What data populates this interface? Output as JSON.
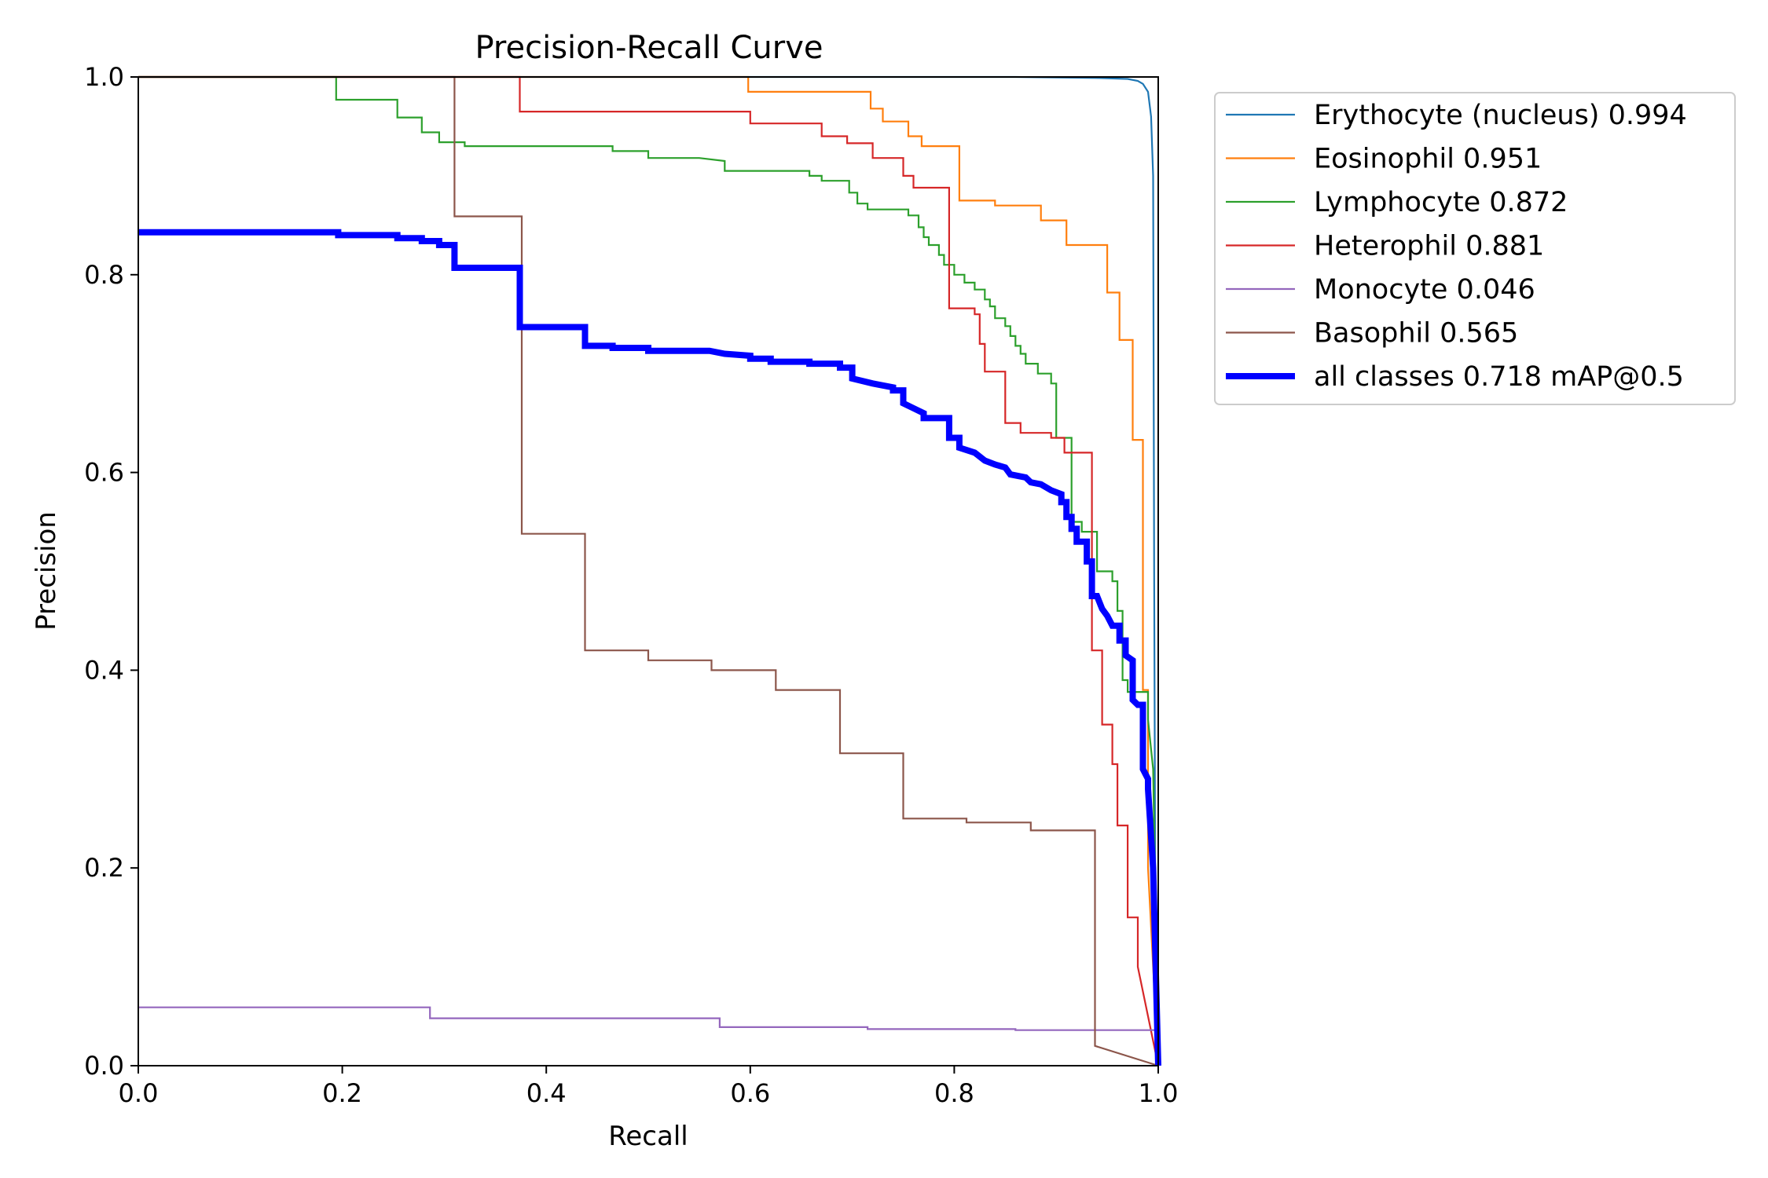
{
  "chart_data": {
    "type": "line",
    "title": "Precision-Recall Curve",
    "xlabel": "Recall",
    "ylabel": "Precision",
    "xlim": [
      0,
      1
    ],
    "ylim": [
      0,
      1
    ],
    "xticks": [
      "0.0",
      "0.2",
      "0.4",
      "0.6",
      "0.8",
      "1.0"
    ],
    "yticks": [
      "0.0",
      "0.2",
      "0.4",
      "0.6",
      "0.8",
      "1.0"
    ],
    "grid": false,
    "legend_position": "outside-top-right",
    "series": [
      {
        "name": "Erythocyte (nucleus) 0.994",
        "color": "#1f77b4",
        "width": "thin",
        "points": [
          [
            0.0,
            1.0
          ],
          [
            0.86,
            1.0
          ],
          [
            0.94,
            0.999
          ],
          [
            0.97,
            0.998
          ],
          [
            0.98,
            0.996
          ],
          [
            0.985,
            0.993
          ],
          [
            0.99,
            0.985
          ],
          [
            0.993,
            0.96
          ],
          [
            0.995,
            0.9
          ],
          [
            0.996,
            0.5
          ],
          [
            0.997,
            0.2
          ],
          [
            1.0,
            0.0
          ]
        ]
      },
      {
        "name": "Eosinophil 0.951",
        "color": "#ff7f0e",
        "width": "thin",
        "points": [
          [
            0.0,
            1.0
          ],
          [
            0.598,
            1.0
          ],
          [
            0.598,
            0.985
          ],
          [
            0.718,
            0.985
          ],
          [
            0.718,
            0.968
          ],
          [
            0.73,
            0.968
          ],
          [
            0.73,
            0.955
          ],
          [
            0.755,
            0.955
          ],
          [
            0.755,
            0.94
          ],
          [
            0.768,
            0.94
          ],
          [
            0.768,
            0.93
          ],
          [
            0.805,
            0.93
          ],
          [
            0.805,
            0.875
          ],
          [
            0.84,
            0.875
          ],
          [
            0.84,
            0.87
          ],
          [
            0.885,
            0.87
          ],
          [
            0.885,
            0.855
          ],
          [
            0.91,
            0.855
          ],
          [
            0.91,
            0.83
          ],
          [
            0.95,
            0.83
          ],
          [
            0.95,
            0.782
          ],
          [
            0.962,
            0.782
          ],
          [
            0.962,
            0.734
          ],
          [
            0.975,
            0.734
          ],
          [
            0.975,
            0.633
          ],
          [
            0.985,
            0.633
          ],
          [
            0.985,
            0.38
          ],
          [
            0.99,
            0.38
          ],
          [
            0.99,
            0.2
          ],
          [
            0.995,
            0.1
          ],
          [
            1.0,
            0.0
          ]
        ]
      },
      {
        "name": "Lymphocyte 0.872",
        "color": "#2ca02c",
        "width": "thin",
        "points": [
          [
            0.0,
            1.0
          ],
          [
            0.194,
            1.0
          ],
          [
            0.194,
            0.977
          ],
          [
            0.254,
            0.977
          ],
          [
            0.254,
            0.959
          ],
          [
            0.278,
            0.959
          ],
          [
            0.278,
            0.944
          ],
          [
            0.295,
            0.944
          ],
          [
            0.295,
            0.934
          ],
          [
            0.32,
            0.934
          ],
          [
            0.32,
            0.93
          ],
          [
            0.465,
            0.93
          ],
          [
            0.465,
            0.925
          ],
          [
            0.5,
            0.925
          ],
          [
            0.5,
            0.918
          ],
          [
            0.55,
            0.918
          ],
          [
            0.575,
            0.915
          ],
          [
            0.575,
            0.905
          ],
          [
            0.658,
            0.905
          ],
          [
            0.658,
            0.9
          ],
          [
            0.67,
            0.9
          ],
          [
            0.67,
            0.895
          ],
          [
            0.697,
            0.895
          ],
          [
            0.697,
            0.883
          ],
          [
            0.705,
            0.883
          ],
          [
            0.705,
            0.872
          ],
          [
            0.715,
            0.872
          ],
          [
            0.715,
            0.866
          ],
          [
            0.755,
            0.866
          ],
          [
            0.755,
            0.86
          ],
          [
            0.765,
            0.86
          ],
          [
            0.765,
            0.848
          ],
          [
            0.77,
            0.848
          ],
          [
            0.77,
            0.838
          ],
          [
            0.775,
            0.838
          ],
          [
            0.775,
            0.83
          ],
          [
            0.785,
            0.83
          ],
          [
            0.785,
            0.82
          ],
          [
            0.79,
            0.82
          ],
          [
            0.79,
            0.81
          ],
          [
            0.8,
            0.81
          ],
          [
            0.8,
            0.8
          ],
          [
            0.81,
            0.8
          ],
          [
            0.81,
            0.792
          ],
          [
            0.82,
            0.792
          ],
          [
            0.82,
            0.785
          ],
          [
            0.83,
            0.785
          ],
          [
            0.83,
            0.775
          ],
          [
            0.835,
            0.775
          ],
          [
            0.835,
            0.768
          ],
          [
            0.84,
            0.768
          ],
          [
            0.84,
            0.756
          ],
          [
            0.85,
            0.756
          ],
          [
            0.85,
            0.748
          ],
          [
            0.855,
            0.748
          ],
          [
            0.855,
            0.738
          ],
          [
            0.86,
            0.738
          ],
          [
            0.86,
            0.728
          ],
          [
            0.865,
            0.728
          ],
          [
            0.865,
            0.72
          ],
          [
            0.87,
            0.72
          ],
          [
            0.87,
            0.71
          ],
          [
            0.882,
            0.71
          ],
          [
            0.882,
            0.7
          ],
          [
            0.895,
            0.7
          ],
          [
            0.895,
            0.69
          ],
          [
            0.9,
            0.69
          ],
          [
            0.9,
            0.635
          ],
          [
            0.915,
            0.635
          ],
          [
            0.915,
            0.55
          ],
          [
            0.925,
            0.55
          ],
          [
            0.925,
            0.54
          ],
          [
            0.94,
            0.54
          ],
          [
            0.94,
            0.5
          ],
          [
            0.955,
            0.5
          ],
          [
            0.955,
            0.49
          ],
          [
            0.96,
            0.49
          ],
          [
            0.96,
            0.46
          ],
          [
            0.965,
            0.46
          ],
          [
            0.965,
            0.39
          ],
          [
            0.97,
            0.39
          ],
          [
            0.97,
            0.378
          ],
          [
            0.99,
            0.378
          ],
          [
            0.99,
            0.35
          ],
          [
            0.995,
            0.3
          ],
          [
            1.0,
            0.0
          ]
        ]
      },
      {
        "name": "Heterophil 0.881",
        "color": "#d62728",
        "width": "thin",
        "points": [
          [
            0.0,
            1.0
          ],
          [
            0.374,
            1.0
          ],
          [
            0.374,
            0.965
          ],
          [
            0.6,
            0.965
          ],
          [
            0.6,
            0.953
          ],
          [
            0.67,
            0.953
          ],
          [
            0.67,
            0.94
          ],
          [
            0.695,
            0.94
          ],
          [
            0.695,
            0.933
          ],
          [
            0.72,
            0.933
          ],
          [
            0.72,
            0.918
          ],
          [
            0.75,
            0.918
          ],
          [
            0.75,
            0.9
          ],
          [
            0.76,
            0.9
          ],
          [
            0.76,
            0.888
          ],
          [
            0.795,
            0.888
          ],
          [
            0.795,
            0.766
          ],
          [
            0.82,
            0.766
          ],
          [
            0.82,
            0.76
          ],
          [
            0.825,
            0.76
          ],
          [
            0.825,
            0.73
          ],
          [
            0.83,
            0.73
          ],
          [
            0.83,
            0.702
          ],
          [
            0.85,
            0.702
          ],
          [
            0.85,
            0.65
          ],
          [
            0.865,
            0.65
          ],
          [
            0.865,
            0.64
          ],
          [
            0.895,
            0.64
          ],
          [
            0.895,
            0.635
          ],
          [
            0.908,
            0.635
          ],
          [
            0.908,
            0.62
          ],
          [
            0.935,
            0.62
          ],
          [
            0.935,
            0.42
          ],
          [
            0.945,
            0.42
          ],
          [
            0.945,
            0.345
          ],
          [
            0.955,
            0.345
          ],
          [
            0.955,
            0.305
          ],
          [
            0.96,
            0.305
          ],
          [
            0.96,
            0.243
          ],
          [
            0.97,
            0.243
          ],
          [
            0.97,
            0.15
          ],
          [
            0.98,
            0.15
          ],
          [
            0.98,
            0.1
          ],
          [
            0.99,
            0.05
          ],
          [
            1.0,
            0.0
          ]
        ]
      },
      {
        "name": "Monocyte 0.046",
        "color": "#9467bd",
        "width": "thin",
        "points": [
          [
            0.0,
            0.059
          ],
          [
            0.286,
            0.059
          ],
          [
            0.286,
            0.048
          ],
          [
            0.57,
            0.048
          ],
          [
            0.57,
            0.039
          ],
          [
            0.715,
            0.039
          ],
          [
            0.715,
            0.037
          ],
          [
            0.86,
            0.037
          ],
          [
            0.86,
            0.036
          ],
          [
            1.0,
            0.036
          ]
        ]
      },
      {
        "name": "Basophil 0.565",
        "color": "#8c564b",
        "width": "thin",
        "points": [
          [
            0.0,
            1.0
          ],
          [
            0.31,
            1.0
          ],
          [
            0.31,
            0.859
          ],
          [
            0.376,
            0.859
          ],
          [
            0.376,
            0.538
          ],
          [
            0.438,
            0.538
          ],
          [
            0.438,
            0.42
          ],
          [
            0.5,
            0.42
          ],
          [
            0.5,
            0.41
          ],
          [
            0.562,
            0.41
          ],
          [
            0.562,
            0.4
          ],
          [
            0.625,
            0.4
          ],
          [
            0.625,
            0.38
          ],
          [
            0.688,
            0.38
          ],
          [
            0.688,
            0.316
          ],
          [
            0.75,
            0.316
          ],
          [
            0.75,
            0.25
          ],
          [
            0.812,
            0.25
          ],
          [
            0.812,
            0.246
          ],
          [
            0.875,
            0.246
          ],
          [
            0.875,
            0.238
          ],
          [
            0.938,
            0.238
          ],
          [
            0.938,
            0.02
          ],
          [
            1.0,
            0.0
          ]
        ]
      },
      {
        "name": "all classes 0.718 mAP@0.5",
        "color": "#0000ff",
        "width": "thick",
        "points": [
          [
            0.0,
            0.843
          ],
          [
            0.196,
            0.843
          ],
          [
            0.196,
            0.84
          ],
          [
            0.254,
            0.84
          ],
          [
            0.254,
            0.837
          ],
          [
            0.278,
            0.837
          ],
          [
            0.278,
            0.834
          ],
          [
            0.295,
            0.834
          ],
          [
            0.295,
            0.83
          ],
          [
            0.31,
            0.83
          ],
          [
            0.31,
            0.807
          ],
          [
            0.374,
            0.807
          ],
          [
            0.374,
            0.747
          ],
          [
            0.438,
            0.747
          ],
          [
            0.438,
            0.728
          ],
          [
            0.465,
            0.728
          ],
          [
            0.465,
            0.726
          ],
          [
            0.5,
            0.726
          ],
          [
            0.5,
            0.723
          ],
          [
            0.56,
            0.723
          ],
          [
            0.575,
            0.72
          ],
          [
            0.6,
            0.718
          ],
          [
            0.6,
            0.715
          ],
          [
            0.62,
            0.715
          ],
          [
            0.62,
            0.712
          ],
          [
            0.658,
            0.712
          ],
          [
            0.658,
            0.71
          ],
          [
            0.688,
            0.71
          ],
          [
            0.688,
            0.706
          ],
          [
            0.7,
            0.706
          ],
          [
            0.7,
            0.695
          ],
          [
            0.72,
            0.69
          ],
          [
            0.74,
            0.686
          ],
          [
            0.74,
            0.683
          ],
          [
            0.75,
            0.683
          ],
          [
            0.75,
            0.67
          ],
          [
            0.76,
            0.665
          ],
          [
            0.77,
            0.66
          ],
          [
            0.77,
            0.655
          ],
          [
            0.795,
            0.655
          ],
          [
            0.795,
            0.635
          ],
          [
            0.805,
            0.635
          ],
          [
            0.805,
            0.625
          ],
          [
            0.82,
            0.62
          ],
          [
            0.83,
            0.612
          ],
          [
            0.84,
            0.608
          ],
          [
            0.85,
            0.605
          ],
          [
            0.855,
            0.598
          ],
          [
            0.87,
            0.595
          ],
          [
            0.875,
            0.59
          ],
          [
            0.885,
            0.588
          ],
          [
            0.895,
            0.582
          ],
          [
            0.905,
            0.578
          ],
          [
            0.905,
            0.57
          ],
          [
            0.91,
            0.57
          ],
          [
            0.91,
            0.555
          ],
          [
            0.915,
            0.555
          ],
          [
            0.915,
            0.543
          ],
          [
            0.92,
            0.543
          ],
          [
            0.92,
            0.53
          ],
          [
            0.93,
            0.53
          ],
          [
            0.93,
            0.51
          ],
          [
            0.935,
            0.51
          ],
          [
            0.935,
            0.475
          ],
          [
            0.94,
            0.475
          ],
          [
            0.945,
            0.462
          ],
          [
            0.95,
            0.455
          ],
          [
            0.955,
            0.445
          ],
          [
            0.962,
            0.445
          ],
          [
            0.962,
            0.43
          ],
          [
            0.968,
            0.43
          ],
          [
            0.968,
            0.415
          ],
          [
            0.975,
            0.41
          ],
          [
            0.975,
            0.37
          ],
          [
            0.98,
            0.365
          ],
          [
            0.985,
            0.365
          ],
          [
            0.985,
            0.3
          ],
          [
            0.99,
            0.29
          ],
          [
            0.99,
            0.28
          ],
          [
            0.995,
            0.2
          ],
          [
            1.0,
            0.0
          ]
        ]
      }
    ]
  }
}
